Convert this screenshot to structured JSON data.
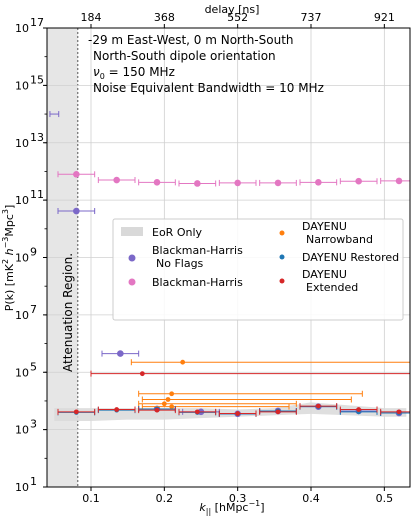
{
  "chart_data": {
    "type": "scatter",
    "title": "",
    "xlabel": "k",
    "xlabel_sub": "||",
    "xlabel_unit": " [hMpc",
    "xlabel_unit_sup": "−1",
    "xlabel_unit_end": "]",
    "ylabel_main": "P(k) [mK",
    "ylabel_sup1": "2",
    "ylabel_h": " h",
    "ylabel_sup2": "−3",
    "ylabel_mpc": "Mpc",
    "ylabel_sup3": "3",
    "ylabel_end": "]",
    "top_axis_label": "delay [ns]",
    "xlim": [
      0.04,
      0.535
    ],
    "ylim_log10": [
      1,
      17
    ],
    "y_scale": "log",
    "grid": true,
    "x_ticks": [
      0.1,
      0.2,
      0.3,
      0.4,
      0.5
    ],
    "x_tick_labels": [
      "0.1",
      "0.2",
      "0.3",
      "0.4",
      "0.5"
    ],
    "y_ticks_log10": [
      1,
      3,
      5,
      7,
      9,
      11,
      13,
      15,
      17
    ],
    "y_tick_base": "10",
    "y_tick_exps": [
      "1",
      "3",
      "5",
      "7",
      "9",
      "11",
      "13",
      "15",
      "17"
    ],
    "top_ticks_k": [
      0.1,
      0.2,
      0.3,
      0.4,
      0.5
    ],
    "top_tick_labels": [
      "184",
      "368",
      "552",
      "737",
      "921"
    ],
    "attenuation_region": {
      "x_end": 0.082,
      "label": "Attenuation Region."
    },
    "annotation_lines": [
      "-29 m East-West, 0 m North-South",
      "North-South dipole orientation"
    ],
    "annotation_nu": {
      "prefix": "ν",
      "sub": "0",
      "rest": " = 150 MHz"
    },
    "annotation_noise": "Noise Equivalent Bandwidth = 10 MHz",
    "legend": {
      "placement": "center",
      "entries": [
        {
          "key": "eor",
          "label1": "EoR Only",
          "label2": "",
          "color": "#d9d9d9",
          "marker": "patch"
        },
        {
          "key": "bh_noflags",
          "label1": "Blackman-Harris",
          "label2": "No Flags",
          "color": "#7b68c8",
          "marker": "dot"
        },
        {
          "key": "bh",
          "label1": "Blackman-Harris",
          "label2": "",
          "color": "#e377c2",
          "marker": "dot"
        },
        {
          "key": "dnb",
          "label1": "DAYENU",
          "label2": "Narrowband",
          "color": "#ff7f0e",
          "marker": "dot"
        },
        {
          "key": "dr",
          "label1": "DAYENU Restored",
          "label2": "",
          "color": "#1f77b4",
          "marker": "dot"
        },
        {
          "key": "de",
          "label1": "DAYENU",
          "label2": "Extended",
          "color": "#d62728",
          "marker": "dot"
        }
      ]
    },
    "eor_band": {
      "x": [
        0.05,
        0.1,
        0.15,
        0.2,
        0.25,
        0.3,
        0.35,
        0.4,
        0.45,
        0.5,
        0.53
      ],
      "lower_log10": [
        3.3,
        3.3,
        3.35,
        3.35,
        3.4,
        3.45,
        3.5,
        3.55,
        3.5,
        3.45,
        3.45
      ],
      "upper_log10": [
        3.75,
        3.75,
        3.75,
        3.75,
        3.75,
        3.7,
        3.75,
        3.95,
        3.85,
        3.75,
        3.75
      ]
    },
    "series": [
      {
        "key": "bh",
        "name": "Blackman-Harris",
        "color": "#e377c2",
        "x": [
          0.08,
          0.135,
          0.19,
          0.245,
          0.3,
          0.355,
          0.41,
          0.465,
          0.52
        ],
        "xerr": [
          0.025,
          0.025,
          0.025,
          0.025,
          0.025,
          0.025,
          0.025,
          0.025,
          0.025
        ],
        "y_log10": [
          11.9,
          11.7,
          11.62,
          11.58,
          11.6,
          11.6,
          11.62,
          11.66,
          11.67
        ]
      },
      {
        "key": "bh_noflags",
        "name": "Blackman-Harris No Flags",
        "color": "#7b68c8",
        "x": [
          0.08,
          0.14,
          0.19,
          0.25,
          0.3,
          0.355,
          0.41,
          0.465,
          0.52
        ],
        "xerr": [
          0.025,
          0.025,
          0.025,
          0.025,
          0.025,
          0.025,
          0.025,
          0.025,
          0.025
        ],
        "y_log10": [
          10.62,
          5.65,
          3.72,
          3.62,
          3.55,
          3.65,
          3.8,
          3.65,
          3.58
        ]
      },
      {
        "key": "bh_noflags_edge",
        "name": "",
        "color": "#7b68c8",
        "x": [
          0.05
        ],
        "xerr": [
          0.006
        ],
        "y_log10": [
          14.0
        ]
      },
      {
        "key": "dnb",
        "name": "DAYENU Narrowband",
        "color": "#ff7f0e",
        "x": [
          0.225,
          0.21,
          0.205,
          0.2,
          0.21
        ],
        "xerr_left": [
          0.07,
          0.045,
          0.035,
          0.035,
          0.04
        ],
        "xerr_right": [
          0.32,
          0.26,
          0.25,
          0.18,
          0.16
        ],
        "y_log10": [
          5.35,
          4.25,
          4.05,
          3.9,
          3.8
        ]
      },
      {
        "key": "dr",
        "name": "DAYENU Restored",
        "color": "#1f77b4",
        "x": [
          0.08,
          0.135,
          0.19,
          0.245,
          0.3,
          0.355,
          0.41,
          0.465,
          0.52
        ],
        "xerr": [
          0.025,
          0.025,
          0.025,
          0.025,
          0.025,
          0.025,
          0.025,
          0.025,
          0.025
        ],
        "y_log10": [
          3.6,
          3.68,
          3.72,
          3.6,
          3.55,
          3.65,
          3.8,
          3.62,
          3.58
        ]
      },
      {
        "key": "de",
        "name": "DAYENU Extended",
        "color": "#d62728",
        "x": [
          0.17,
          0.08,
          0.135,
          0.19,
          0.245,
          0.3,
          0.355,
          0.41,
          0.465,
          0.52
        ],
        "xerr_left": [
          0.07,
          0.025,
          0.025,
          0.025,
          0.025,
          0.025,
          0.025,
          0.025,
          0.025,
          0.025
        ],
        "xerr_right": [
          0.37,
          0.025,
          0.025,
          0.025,
          0.025,
          0.025,
          0.025,
          0.025,
          0.025,
          0.025
        ],
        "y_log10": [
          4.95,
          3.62,
          3.7,
          3.68,
          3.62,
          3.56,
          3.62,
          3.82,
          3.7,
          3.62
        ]
      }
    ]
  }
}
